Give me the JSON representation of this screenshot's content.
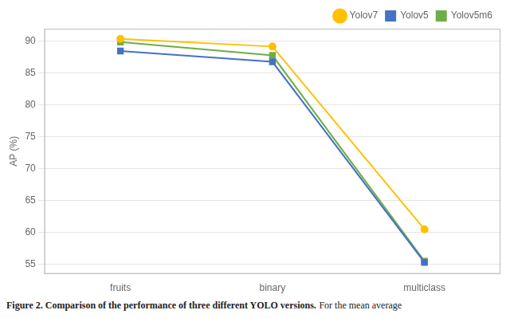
{
  "chart_data": {
    "type": "line",
    "categories": [
      "fruits",
      "binary",
      "multiclass"
    ],
    "series": [
      {
        "name": "Yolov7",
        "color": "#FFC000",
        "marker": "circle",
        "values": [
          90.4,
          89.2,
          60.5
        ]
      },
      {
        "name": "Yolov5",
        "color": "#4472C4",
        "marker": "square",
        "values": [
          88.5,
          86.8,
          55.3
        ]
      },
      {
        "name": "Yolov5m6",
        "color": "#70AD47",
        "marker": "square",
        "values": [
          89.9,
          87.8,
          55.5
        ]
      }
    ],
    "y_label": "AP (%)",
    "ylim": [
      53.5,
      92
    ],
    "yticks": [
      55,
      60,
      65,
      70,
      75,
      80,
      85,
      90
    ],
    "grid": true,
    "legend": "upper right",
    "annotations": [
      "Figure 2. Comparison of the performance of three different YOLO versions.",
      "For the mean average"
    ]
  }
}
